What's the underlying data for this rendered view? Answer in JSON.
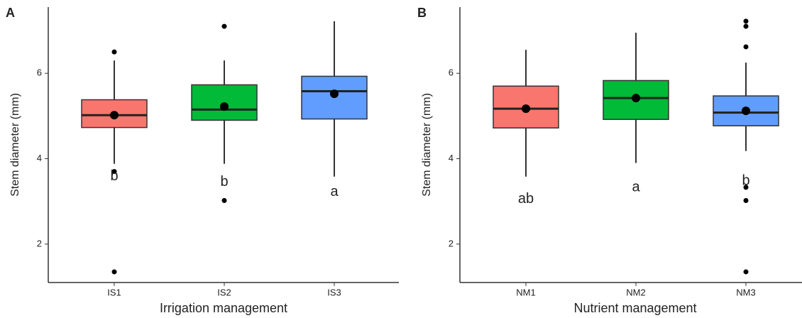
{
  "chart_data": [
    {
      "type": "box",
      "panel_label": "A",
      "ylabel": "Stem diameter (mm)",
      "xlabel": "Irrigation management",
      "categories": [
        "IS1",
        "IS2",
        "IS3"
      ],
      "colors": [
        "#f8766d",
        "#00ba38",
        "#619cff"
      ],
      "ylim": [
        1.1,
        7.55
      ],
      "yticks": [
        2,
        4,
        6
      ],
      "boxes": [
        {
          "whisker_low": 3.88,
          "q1": 4.73,
          "median": 5.02,
          "q3": 5.38,
          "whisker_high": 6.3,
          "mean": 5.02,
          "outliers": [
            6.5,
            3.7,
            1.35
          ],
          "letter": "b",
          "letter_y": 3.58
        },
        {
          "whisker_low": 3.88,
          "q1": 4.9,
          "median": 5.15,
          "q3": 5.73,
          "whisker_high": 6.3,
          "mean": 5.22,
          "outliers": [
            7.1,
            3.02
          ],
          "letter": "b",
          "letter_y": 3.45
        },
        {
          "whisker_low": 3.58,
          "q1": 4.93,
          "median": 5.58,
          "q3": 5.93,
          "whisker_high": 7.22,
          "mean": 5.52,
          "outliers": [],
          "letter": "a",
          "letter_y": 3.22
        }
      ]
    },
    {
      "type": "box",
      "panel_label": "B",
      "ylabel": "Stem diameter (mm)",
      "xlabel": "Nutrient management",
      "categories": [
        "NM1",
        "NM2",
        "NM3"
      ],
      "colors": [
        "#f8766d",
        "#00ba38",
        "#619cff"
      ],
      "ylim": [
        1.1,
        7.55
      ],
      "yticks": [
        2,
        4,
        6
      ],
      "boxes": [
        {
          "whisker_low": 3.58,
          "q1": 4.72,
          "median": 5.17,
          "q3": 5.7,
          "whisker_high": 6.55,
          "mean": 5.17,
          "outliers": [],
          "letter": "ab",
          "letter_y": 3.05
        },
        {
          "whisker_low": 3.9,
          "q1": 4.92,
          "median": 5.42,
          "q3": 5.83,
          "whisker_high": 6.95,
          "mean": 5.42,
          "outliers": [],
          "letter": "a",
          "letter_y": 3.32
        },
        {
          "whisker_low": 4.18,
          "q1": 4.77,
          "median": 5.08,
          "q3": 5.47,
          "whisker_high": 6.25,
          "mean": 5.12,
          "outliers": [
            7.22,
            7.1,
            6.62,
            3.33,
            3.02,
            1.35
          ],
          "letter": "b",
          "letter_y": 3.47
        }
      ]
    }
  ]
}
